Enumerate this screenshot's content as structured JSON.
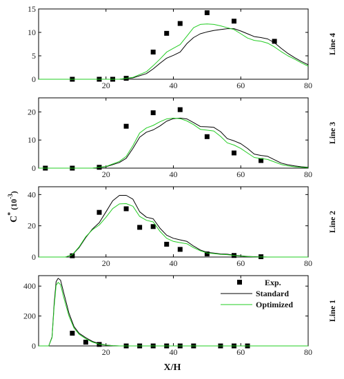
{
  "figure": {
    "xlabel": "X/H",
    "ylabel_main": "C",
    "ylabel_sup": "*",
    "ylabel_unit_open": " (10",
    "ylabel_unit_exp": "-3",
    "ylabel_unit_close": ")"
  },
  "legend": {
    "exp_label": "Exp.",
    "standard_label": "Standard",
    "optimized_label": "Optimized"
  },
  "colors": {
    "standard": "#000000",
    "optimized": "#22cc22",
    "exp": "#000000"
  },
  "chart_data": [
    {
      "type": "line",
      "panel_label": "Line 4",
      "xlim": [
        0,
        80
      ],
      "ylim": [
        0,
        15
      ],
      "xticks": [
        20,
        40,
        60,
        80
      ],
      "yticks": [
        0,
        5,
        10,
        15
      ],
      "series": [
        {
          "name": "Exp.",
          "kind": "scatter",
          "x": [
            10,
            18,
            22,
            26,
            34,
            38,
            42,
            50,
            58,
            70
          ],
          "y": [
            0,
            0,
            0,
            0.2,
            5.8,
            9.8,
            11.9,
            14.2,
            12.4,
            8.1
          ]
        },
        {
          "name": "Standard",
          "kind": "line",
          "x": [
            0,
            24,
            28,
            32,
            34,
            36,
            38,
            40,
            42,
            44,
            46,
            48,
            50,
            52,
            54,
            56,
            58,
            60,
            62,
            64,
            66,
            68,
            70,
            72,
            74,
            76,
            78,
            80
          ],
          "y": [
            0,
            0,
            0.3,
            1.2,
            2.2,
            3.4,
            4.5,
            5.1,
            5.8,
            7.6,
            8.9,
            9.7,
            10.1,
            10.4,
            10.6,
            10.8,
            10.8,
            10.3,
            9.7,
            9.1,
            8.9,
            8.6,
            7.8,
            6.6,
            5.5,
            4.6,
            3.8,
            3.1
          ]
        },
        {
          "name": "Optimized",
          "kind": "line",
          "x": [
            0,
            24,
            28,
            32,
            34,
            36,
            38,
            40,
            42,
            44,
            46,
            48,
            50,
            52,
            54,
            56,
            58,
            60,
            62,
            64,
            66,
            68,
            70,
            72,
            74,
            76,
            78,
            80
          ],
          "y": [
            0,
            0,
            0.4,
            1.6,
            2.9,
            4.3,
            5.8,
            6.6,
            7.4,
            9.2,
            11.0,
            11.7,
            11.8,
            11.7,
            11.4,
            11.0,
            10.6,
            9.7,
            8.8,
            8.3,
            8.1,
            7.7,
            6.9,
            5.9,
            5.0,
            4.3,
            3.5,
            2.8
          ]
        }
      ]
    },
    {
      "type": "line",
      "panel_label": "Line 3",
      "xlim": [
        0,
        80
      ],
      "ylim": [
        0,
        25
      ],
      "xticks": [
        20,
        40,
        60,
        80
      ],
      "yticks": [
        0,
        10,
        20
      ],
      "series": [
        {
          "name": "Exp.",
          "kind": "scatter",
          "x": [
            2,
            10,
            18,
            26,
            34,
            42,
            50,
            58,
            66
          ],
          "y": [
            0,
            0,
            0.3,
            14.9,
            19.7,
            20.8,
            11.2,
            5.4,
            2.7
          ]
        },
        {
          "name": "Standard",
          "kind": "line",
          "x": [
            0,
            16,
            20,
            24,
            26,
            28,
            30,
            32,
            34,
            36,
            38,
            40,
            42,
            44,
            46,
            48,
            50,
            52,
            54,
            56,
            58,
            60,
            62,
            64,
            66,
            68,
            70,
            72,
            74,
            76,
            78,
            80
          ],
          "y": [
            0,
            0,
            0.5,
            2.0,
            3.5,
            7.0,
            11.0,
            12.8,
            13.6,
            15.0,
            16.7,
            17.6,
            17.8,
            17.5,
            16.2,
            14.8,
            14.7,
            14.5,
            13.0,
            10.5,
            9.7,
            8.7,
            7.0,
            5.0,
            4.5,
            4.2,
            3.0,
            1.8,
            1.2,
            0.8,
            0.5,
            0.3
          ]
        },
        {
          "name": "Optimized",
          "kind": "line",
          "x": [
            0,
            16,
            20,
            24,
            26,
            28,
            30,
            32,
            34,
            36,
            38,
            40,
            42,
            44,
            46,
            48,
            50,
            52,
            54,
            56,
            58,
            60,
            62,
            64,
            66,
            68,
            70,
            72,
            74,
            76,
            78,
            80
          ],
          "y": [
            0,
            0,
            0.6,
            2.4,
            4.2,
            8.0,
            12.5,
            14.3,
            15.2,
            16.5,
            17.5,
            17.8,
            17.6,
            16.8,
            15.5,
            13.8,
            13.5,
            13.2,
            11.3,
            9.0,
            8.2,
            7.0,
            5.4,
            3.8,
            3.4,
            3.1,
            2.2,
            1.3,
            0.8,
            0.5,
            0.3,
            0.2
          ]
        }
      ]
    },
    {
      "type": "line",
      "panel_label": "Line 2",
      "xlim": [
        0,
        80
      ],
      "ylim": [
        0,
        45
      ],
      "xticks": [
        20,
        40,
        60,
        80
      ],
      "yticks": [
        0,
        20,
        40
      ],
      "series": [
        {
          "name": "Exp.",
          "kind": "scatter",
          "x": [
            10,
            18,
            26,
            30,
            34,
            38,
            42,
            50,
            58,
            66
          ],
          "y": [
            0.8,
            28.6,
            30.9,
            19.0,
            19.5,
            8.2,
            4.9,
            2.0,
            1.0,
            0.2
          ]
        },
        {
          "name": "Standard",
          "kind": "line",
          "x": [
            0,
            8,
            10,
            12,
            14,
            16,
            18,
            20,
            22,
            24,
            26,
            28,
            30,
            32,
            34,
            36,
            38,
            40,
            42,
            44,
            46,
            48,
            50,
            52,
            54,
            56,
            58,
            60,
            62,
            64,
            66,
            68,
            70,
            72,
            74,
            76,
            78,
            80
          ],
          "y": [
            0,
            0,
            1.5,
            6,
            12.5,
            18,
            22,
            29,
            36,
            39.5,
            39.5,
            37,
            29,
            25.5,
            24.5,
            18.5,
            14,
            12,
            11,
            10,
            7,
            4.5,
            3,
            2.5,
            2,
            1.8,
            1.2,
            0.8,
            0.4,
            0.2,
            0.1,
            0,
            0,
            0,
            0,
            0,
            0,
            0
          ]
        },
        {
          "name": "Optimized",
          "kind": "line",
          "x": [
            0,
            8,
            10,
            12,
            14,
            16,
            18,
            20,
            22,
            24,
            26,
            28,
            30,
            32,
            34,
            36,
            38,
            40,
            42,
            44,
            46,
            48,
            50,
            52,
            54,
            56,
            58,
            60,
            62,
            64,
            66,
            68,
            70,
            72,
            74,
            76,
            78,
            80
          ],
          "y": [
            0,
            0,
            1.5,
            6.5,
            13,
            17.5,
            20.5,
            25.5,
            31,
            34,
            34.2,
            32.5,
            26,
            23.5,
            22.5,
            16.5,
            12,
            10,
            9.2,
            8.5,
            6,
            4,
            2.6,
            2.2,
            1.7,
            1.5,
            1,
            0.6,
            0.3,
            0.1,
            0.05,
            0,
            0,
            0,
            0,
            0,
            0,
            0
          ]
        }
      ]
    },
    {
      "type": "line",
      "panel_label": "Line 1",
      "xlim": [
        0,
        80
      ],
      "ylim": [
        0,
        470
      ],
      "xticks": [
        20,
        40,
        60,
        80
      ],
      "yticks": [
        0,
        200,
        400
      ],
      "series": [
        {
          "name": "Exp.",
          "kind": "scatter",
          "x": [
            10,
            14,
            18,
            26,
            30,
            34,
            38,
            42,
            46,
            54,
            58,
            62
          ],
          "y": [
            85,
            25,
            10,
            0,
            0,
            0,
            0,
            0,
            0,
            0,
            0,
            0
          ]
        },
        {
          "name": "Standard",
          "kind": "line",
          "x": [
            0,
            3,
            4,
            4.6,
            5.2,
            5.8,
            6.5,
            7.5,
            9,
            10.5,
            12,
            14,
            16,
            18,
            20,
            22,
            24,
            80
          ],
          "y": [
            0,
            0,
            60,
            280,
            430,
            452,
            440,
            350,
            220,
            130,
            85,
            55,
            30,
            15,
            6,
            2,
            0,
            0
          ]
        },
        {
          "name": "Optimized",
          "kind": "line",
          "x": [
            0,
            3,
            4,
            4.6,
            5.2,
            5.8,
            6.5,
            7.5,
            9,
            10.5,
            12,
            14,
            16,
            18,
            20,
            22,
            24,
            80
          ],
          "y": [
            0,
            0,
            55,
            260,
            405,
            425,
            410,
            320,
            200,
            120,
            78,
            48,
            25,
            12,
            5,
            1,
            0,
            0
          ]
        }
      ]
    }
  ]
}
